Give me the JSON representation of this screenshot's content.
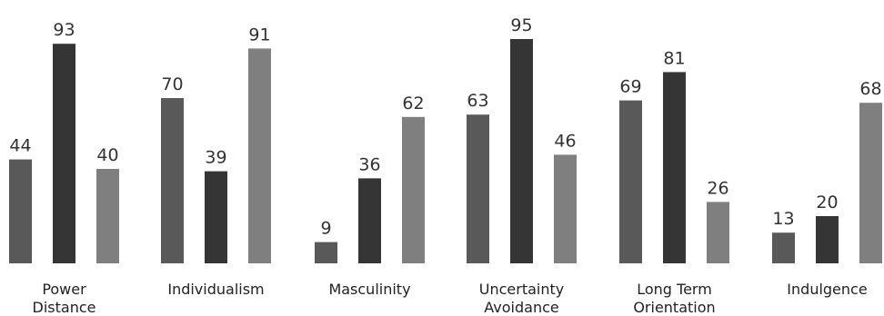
{
  "chart_data": {
    "type": "bar",
    "title": "",
    "xlabel": "",
    "ylabel": "",
    "ylim": [
      0,
      100
    ],
    "grid": false,
    "legend": "none",
    "categories": [
      [
        "Power",
        "Distance"
      ],
      [
        "Individualism"
      ],
      [
        "Masculinity"
      ],
      [
        "Uncertainty",
        "Avoidance"
      ],
      [
        "Long Term",
        "Orientation"
      ],
      [
        "Indulgence"
      ]
    ],
    "series": [
      {
        "values": [
          44,
          70,
          9,
          63,
          69,
          13
        ],
        "color": "#595959"
      },
      {
        "values": [
          93,
          39,
          36,
          95,
          81,
          20
        ],
        "color": "#353535"
      },
      {
        "values": [
          40,
          91,
          62,
          46,
          26,
          68
        ],
        "color": "#7f7f7f"
      }
    ]
  }
}
